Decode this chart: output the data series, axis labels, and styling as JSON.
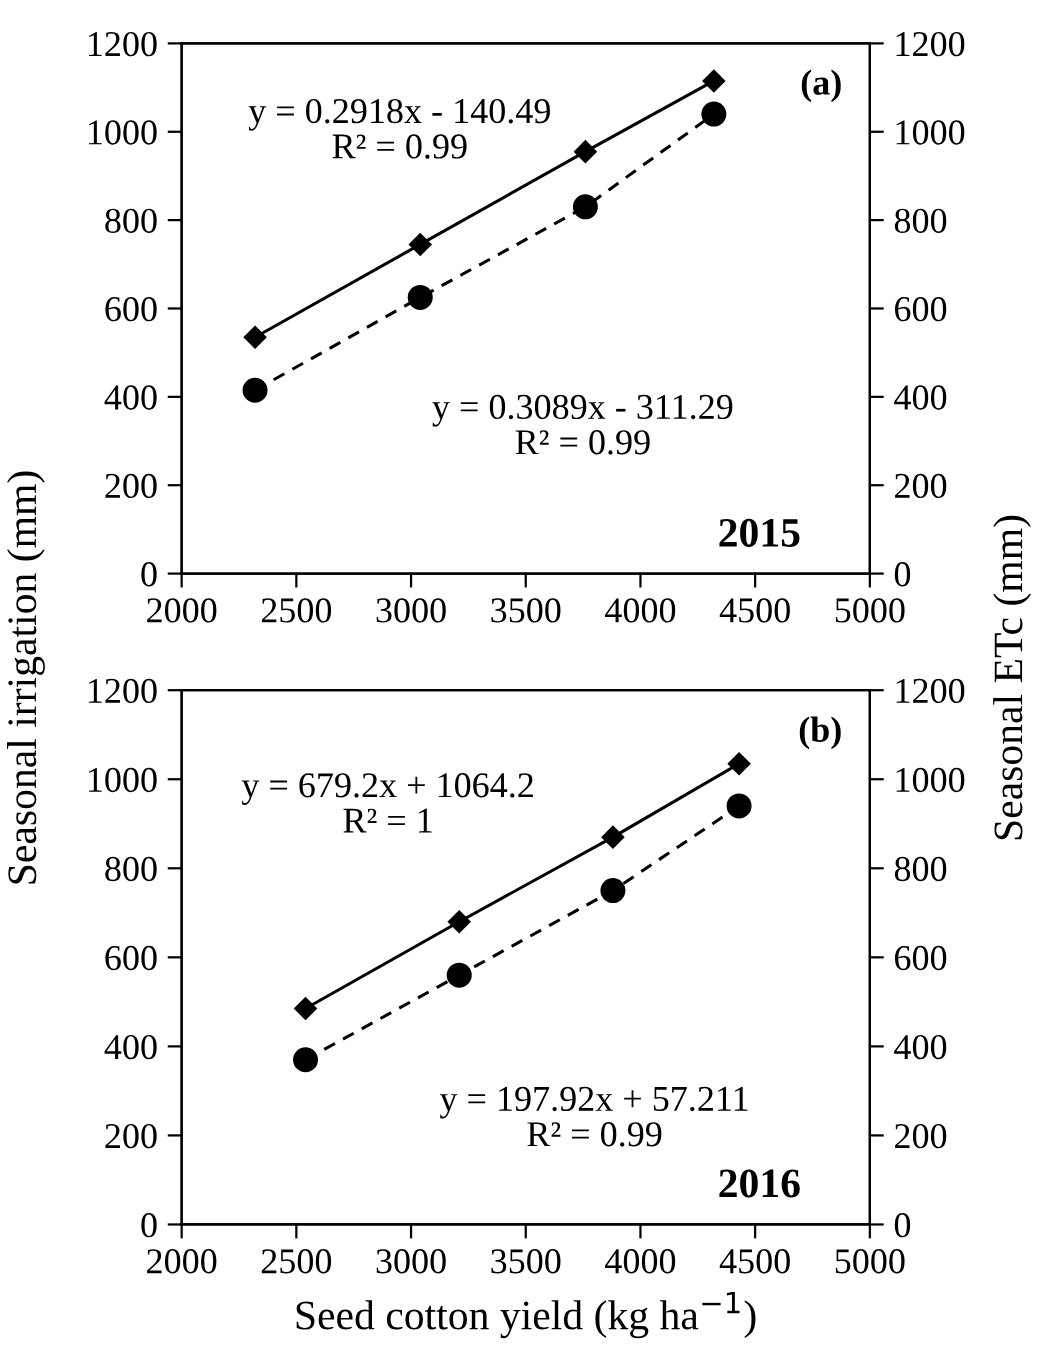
{
  "chart_data": [
    {
      "type": "line",
      "ylabel": "Seasonal irrigation (mm)",
      "y2label": "Seasonal ETc (mm)",
      "xlim": [
        2000,
        5000
      ],
      "xticks": [
        2000,
        2500,
        3000,
        3500,
        4000,
        4500,
        5000
      ],
      "ylim": [
        0,
        1200
      ],
      "yticks": [
        0,
        200,
        400,
        600,
        800,
        1000,
        1200
      ],
      "y2lim": [
        0,
        1200
      ],
      "y2ticks": [
        0,
        200,
        400,
        600,
        800,
        1000,
        1200
      ],
      "series": [
        {
          "color": "#000000",
          "marker": "diamond",
          "line_style": "solid",
          "x": [
            2320,
            3040,
            3760,
            4320
          ],
          "values": [
            535,
            745,
            955,
            1115
          ]
        },
        {
          "color": "#000000",
          "marker": "circle",
          "line_style": "dashed",
          "x": [
            2320,
            3040,
            3760,
            4320
          ],
          "values": [
            415,
            625,
            830,
            1040
          ]
        }
      ],
      "annotations": [
        "y = 0.2918x - 140.49\nR² = 0.99",
        "y = 0.3089x - 311.29\nR² = 0.99",
        "(a)",
        "2015"
      ]
    },
    {
      "type": "line",
      "xlabel": "Seed cotton yield (kg ha$^{−1}$)",
      "xlim": [
        2000,
        5000
      ],
      "xticks": [
        2000,
        2500,
        3000,
        3500,
        4000,
        4500,
        5000
      ],
      "ylim": [
        0,
        1200
      ],
      "yticks": [
        0,
        200,
        400,
        600,
        800,
        1000,
        1200
      ],
      "y2lim": [
        0,
        1200
      ],
      "y2ticks": [
        0,
        200,
        400,
        600,
        800,
        1000,
        1200
      ],
      "series": [
        {
          "color": "#000000",
          "marker": "diamond",
          "line_style": "solid",
          "x": [
            2540,
            3210,
            3880,
            4430
          ],
          "values": [
            485,
            680,
            870,
            1035
          ]
        },
        {
          "color": "#000000",
          "marker": "circle",
          "line_style": "dashed",
          "x": [
            2540,
            3210,
            3880,
            4430
          ],
          "values": [
            370,
            560,
            750,
            940
          ]
        }
      ],
      "annotations": [
        "y = 679.2x + 1064.2\nR² = 1",
        "y = 197.92x + 57.211\nR² = 0.99",
        "(b)",
        "2016"
      ]
    }
  ]
}
